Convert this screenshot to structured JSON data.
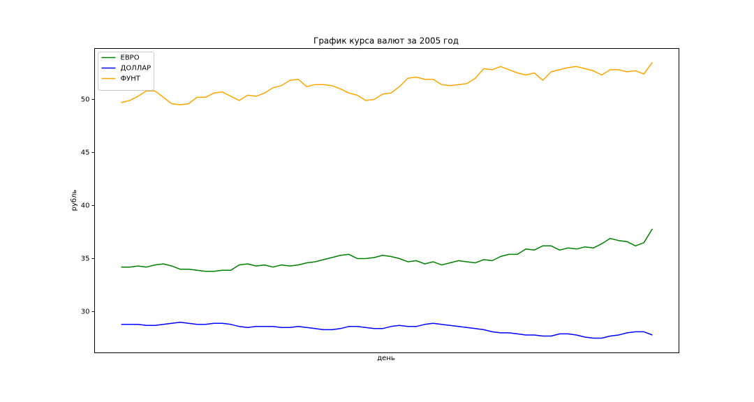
{
  "chart_data": {
    "type": "line",
    "title": "График курса валют за 2005 год",
    "xlabel": "день",
    "ylabel": "рубль",
    "ylim": [
      26.12,
      54.8
    ],
    "yticks": [
      30,
      35,
      40,
      45,
      50
    ],
    "legend": "upper left",
    "grid": false,
    "series": [
      {
        "name": "ЕВРО",
        "color": "green",
        "values": [
          34.2,
          34.2,
          34.3,
          34.2,
          34.4,
          34.5,
          34.3,
          34.0,
          34.0,
          33.9,
          33.8,
          33.8,
          33.9,
          33.9,
          34.4,
          34.5,
          34.3,
          34.4,
          34.2,
          34.4,
          34.3,
          34.4,
          34.6,
          34.7,
          34.9,
          35.1,
          35.3,
          35.4,
          35.0,
          35.0,
          35.1,
          35.3,
          35.2,
          35.0,
          34.7,
          34.8,
          34.5,
          34.7,
          34.4,
          34.6,
          34.8,
          34.7,
          34.6,
          34.9,
          34.8,
          35.2,
          35.4,
          35.4,
          35.9,
          35.8,
          36.2,
          36.2,
          35.8,
          36.0,
          35.9,
          36.1,
          36.0,
          36.4,
          36.9,
          36.7,
          36.6,
          36.2,
          36.5,
          37.8
        ]
      },
      {
        "name": "ДОЛЛАР",
        "color": "blue",
        "values": [
          28.8,
          28.8,
          28.8,
          28.7,
          28.7,
          28.8,
          28.9,
          29.0,
          28.9,
          28.8,
          28.8,
          28.9,
          28.9,
          28.8,
          28.6,
          28.5,
          28.6,
          28.6,
          28.6,
          28.5,
          28.5,
          28.6,
          28.5,
          28.4,
          28.3,
          28.3,
          28.4,
          28.6,
          28.6,
          28.5,
          28.4,
          28.4,
          28.6,
          28.7,
          28.6,
          28.6,
          28.8,
          28.9,
          28.8,
          28.7,
          28.6,
          28.5,
          28.4,
          28.3,
          28.1,
          28.0,
          28.0,
          27.9,
          27.8,
          27.8,
          27.7,
          27.7,
          27.9,
          27.9,
          27.8,
          27.6,
          27.5,
          27.5,
          27.7,
          27.8,
          28.0,
          28.1,
          28.1,
          27.8
        ]
      },
      {
        "name": "ФУНТ",
        "color": "orange",
        "values": [
          49.7,
          49.9,
          50.3,
          50.8,
          50.8,
          50.2,
          49.6,
          49.5,
          49.6,
          50.2,
          50.2,
          50.6,
          50.7,
          50.3,
          49.9,
          50.4,
          50.3,
          50.6,
          51.1,
          51.3,
          51.8,
          51.9,
          51.2,
          51.4,
          51.4,
          51.3,
          51.0,
          50.6,
          50.4,
          49.9,
          50.0,
          50.5,
          50.6,
          51.2,
          52.0,
          52.1,
          51.9,
          51.9,
          51.4,
          51.3,
          51.4,
          51.5,
          52.0,
          52.9,
          52.8,
          53.1,
          52.8,
          52.5,
          52.3,
          52.5,
          51.8,
          52.6,
          52.8,
          53.0,
          53.1,
          52.9,
          52.7,
          52.3,
          52.8,
          52.8,
          52.6,
          52.7,
          52.4,
          53.5
        ]
      }
    ]
  }
}
